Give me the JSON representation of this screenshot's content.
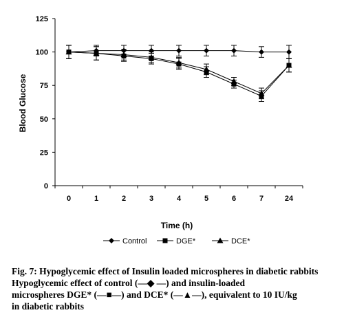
{
  "chart_data": {
    "type": "line",
    "title": "",
    "xlabel": "Time (h)",
    "ylabel": "Blood Glucose",
    "categories": [
      "0",
      "1",
      "2",
      "3",
      "4",
      "5",
      "6",
      "7",
      "24"
    ],
    "ylim": [
      0,
      125
    ],
    "yticks": [
      0,
      25,
      50,
      75,
      100,
      125
    ],
    "grid": false,
    "legend_position": "bottom",
    "series": [
      {
        "name": "Control",
        "marker": "diamond",
        "color": "#000000",
        "values": [
          100,
          101,
          101,
          101,
          101,
          101,
          101,
          100,
          100
        ],
        "errors": [
          5,
          4,
          4,
          4,
          4,
          4,
          4,
          4,
          5
        ]
      },
      {
        "name": "DGE*",
        "marker": "square",
        "color": "#000000",
        "values": [
          100,
          99,
          97,
          95,
          91,
          85,
          76,
          67,
          90
        ],
        "errors": [
          5,
          5,
          4,
          4,
          4,
          4,
          3,
          4,
          5
        ]
      },
      {
        "name": "DCE*",
        "marker": "triangle",
        "color": "#000000",
        "values": [
          100,
          99,
          98,
          96,
          92,
          87,
          78,
          69,
          90
        ],
        "errors": [
          5,
          5,
          4,
          4,
          4,
          4,
          3,
          4,
          5
        ]
      }
    ]
  },
  "caption": {
    "title": "Fig. 7: Hypoglycemic effect of Insulin loaded microspheres in diabetic rabbits",
    "line1": "Hypoglycemic effect of control (—◆ —) and insulin-loaded",
    "line2": "microspheres DGE* (—■—) and DCE* (—▲—), equivalent to 10 IU/kg",
    "line3": "in diabetic rabbits"
  }
}
